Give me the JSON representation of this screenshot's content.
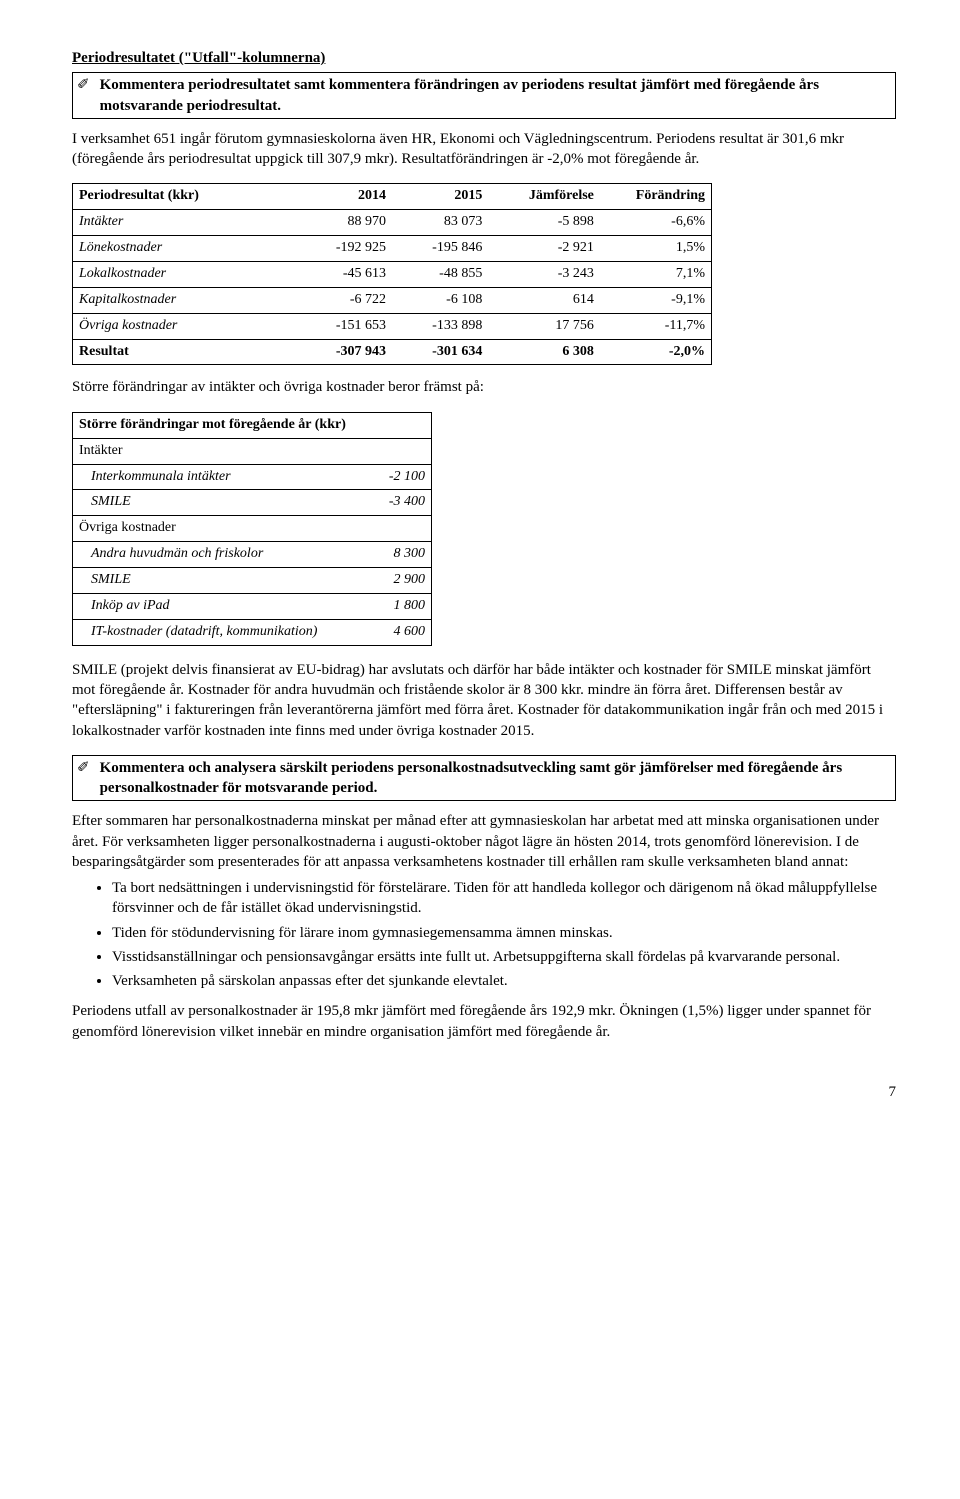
{
  "heading1": "Periodresultatet (\"Utfall\"-kolumnerna)",
  "box1": {
    "text": "Kommentera periodresultatet samt kommentera förändringen av periodens resultat jämfört med föregående års motsvarande periodresultat."
  },
  "para1": "I verksamhet 651 ingår förutom gymnasieskolorna även HR, Ekonomi och Vägledningscentrum. Periodens resultat är 301,6 mkr (föregående års periodresultat uppgick till 307,9 mkr). Resultatförändringen är -2,0% mot föregående år.",
  "result_table": {
    "columns": [
      "Periodresultat (kkr)",
      "2014",
      "2015",
      "Jämförelse",
      "Förändring"
    ],
    "rows": [
      [
        "Intäkter",
        "88 970",
        "83 073",
        "-5 898",
        "-6,6%"
      ],
      [
        "Lönekostnader",
        "-192 925",
        "-195 846",
        "-2 921",
        "1,5%"
      ],
      [
        "Lokalkostnader",
        "-45 613",
        "-48 855",
        "-3 243",
        "7,1%"
      ],
      [
        "Kapitalkostnader",
        "-6 722",
        "-6 108",
        "614",
        "-9,1%"
      ],
      [
        "Övriga kostnader",
        "-151 653",
        "-133 898",
        "17 756",
        "-11,7%"
      ]
    ],
    "total": [
      "Resultat",
      "-307 943",
      "-301 634",
      "6 308",
      "-2,0%"
    ],
    "col_widths": [
      "220px",
      "95px",
      "95px",
      "110px",
      "110px"
    ]
  },
  "para2": "Större förändringar av intäkter och övriga kostnader beror främst på:",
  "change_table": {
    "header": "Större förändringar mot föregående år (kkr)",
    "rows": [
      {
        "type": "section",
        "label": "Intäkter",
        "value": ""
      },
      {
        "type": "item",
        "label": "Interkommunala intäkter",
        "value": "-2 100"
      },
      {
        "type": "item",
        "label": "SMILE",
        "value": "-3 400"
      },
      {
        "type": "section",
        "label": "Övriga kostnader",
        "value": ""
      },
      {
        "type": "item",
        "label": "Andra huvudmän och friskolor",
        "value": "8 300"
      },
      {
        "type": "item",
        "label": "SMILE",
        "value": "2 900"
      },
      {
        "type": "item",
        "label": "Inköp av iPad",
        "value": "1 800"
      },
      {
        "type": "item",
        "label": "IT-kostnader (datadrift, kommunikation)",
        "value": "4 600"
      }
    ]
  },
  "para3": "SMILE (projekt delvis finansierat av EU-bidrag) har avslutats och därför har både intäkter och kostnader för SMILE minskat jämfört mot föregående år. Kostnader för andra huvudmän och fristående skolor är 8 300 kkr. mindre än förra året. Differensen består av \"eftersläpning\" i faktureringen från leverantörerna jämfört med förra året. Kostnader för datakommunikation ingår från och med 2015 i lokalkostnader varför kostnaden inte finns med under övriga kostnader 2015.",
  "box2": {
    "text": "Kommentera och analysera särskilt periodens personalkostnadsutveckling samt gör jämförelser med föregående års personalkostnader för motsvarande period."
  },
  "para4": "Efter sommaren har personalkostnaderna minskat per månad efter att gymnasieskolan har arbetat med att minska organisationen under året. För verksamheten ligger personalkostnaderna i augusti-oktober något lägre än hösten 2014, trots genomförd lönerevision. I de besparingsåtgärder som presenterades för att anpassa verksamhetens kostnader till erhållen ram skulle verksamheten bland annat:",
  "bullets": [
    "Ta bort nedsättningen i undervisningstid för förstelärare. Tiden för att handleda kollegor och därigenom nå ökad måluppfyllelse försvinner och de får istället ökad undervisningstid.",
    "Tiden för stödundervisning för lärare inom gymnasiegemensamma ämnen minskas.",
    "Visstidsanställningar och pensionsavgångar ersätts inte fullt ut. Arbetsuppgifterna skall fördelas på kvarvarande personal.",
    "Verksamheten på särskolan anpassas efter det sjunkande elevtalet."
  ],
  "para5": "Periodens utfall av personalkostnader är 195,8 mkr jämfört med föregående års 192,9 mkr. Ökningen (1,5%) ligger under spannet för genomförd lönerevision vilket innebär en mindre organisation jämfört med föregående år.",
  "page_number": "7"
}
